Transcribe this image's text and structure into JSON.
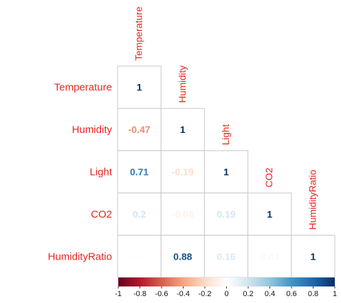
{
  "chart_data": {
    "type": "heatmap",
    "layout": "lower-triangle",
    "variables": [
      "Temperature",
      "Humidity",
      "Light",
      "CO2",
      "HumidityRatio"
    ],
    "matrix": [
      [
        1.0,
        null,
        null,
        null,
        null
      ],
      [
        -0.47,
        1.0,
        null,
        null,
        null
      ],
      [
        0.71,
        -0.19,
        1.0,
        null,
        null
      ],
      [
        0.2,
        -0.08,
        0.19,
        1.0,
        null
      ],
      [
        -0.01,
        0.88,
        0.16,
        0.04,
        1.0
      ]
    ],
    "labels": [
      [
        "1",
        null,
        null,
        null,
        null
      ],
      [
        "-0.47",
        "1",
        null,
        null,
        null
      ],
      [
        "0.71",
        "-0.19",
        "1",
        null,
        null
      ],
      [
        "0.2",
        "-0.08",
        "0.19",
        "1",
        null
      ],
      [
        "-0.01",
        "0.88",
        "0.16",
        "0.04",
        "1"
      ]
    ],
    "colorbar": {
      "range": [
        -1,
        1
      ],
      "ticks": [
        "-1",
        "-0.8",
        "-0.6",
        "-0.4",
        "-0.2",
        "0",
        "0.2",
        "0.4",
        "0.6",
        "0.8",
        "1"
      ],
      "colors": [
        "#67001f",
        "#b2182b",
        "#d6604d",
        "#f4a582",
        "#fddbc7",
        "#ffffff",
        "#d1e5f0",
        "#92c5de",
        "#4393c3",
        "#2166ac",
        "#053061"
      ]
    },
    "grid": true,
    "label_color": "#e8251f"
  }
}
